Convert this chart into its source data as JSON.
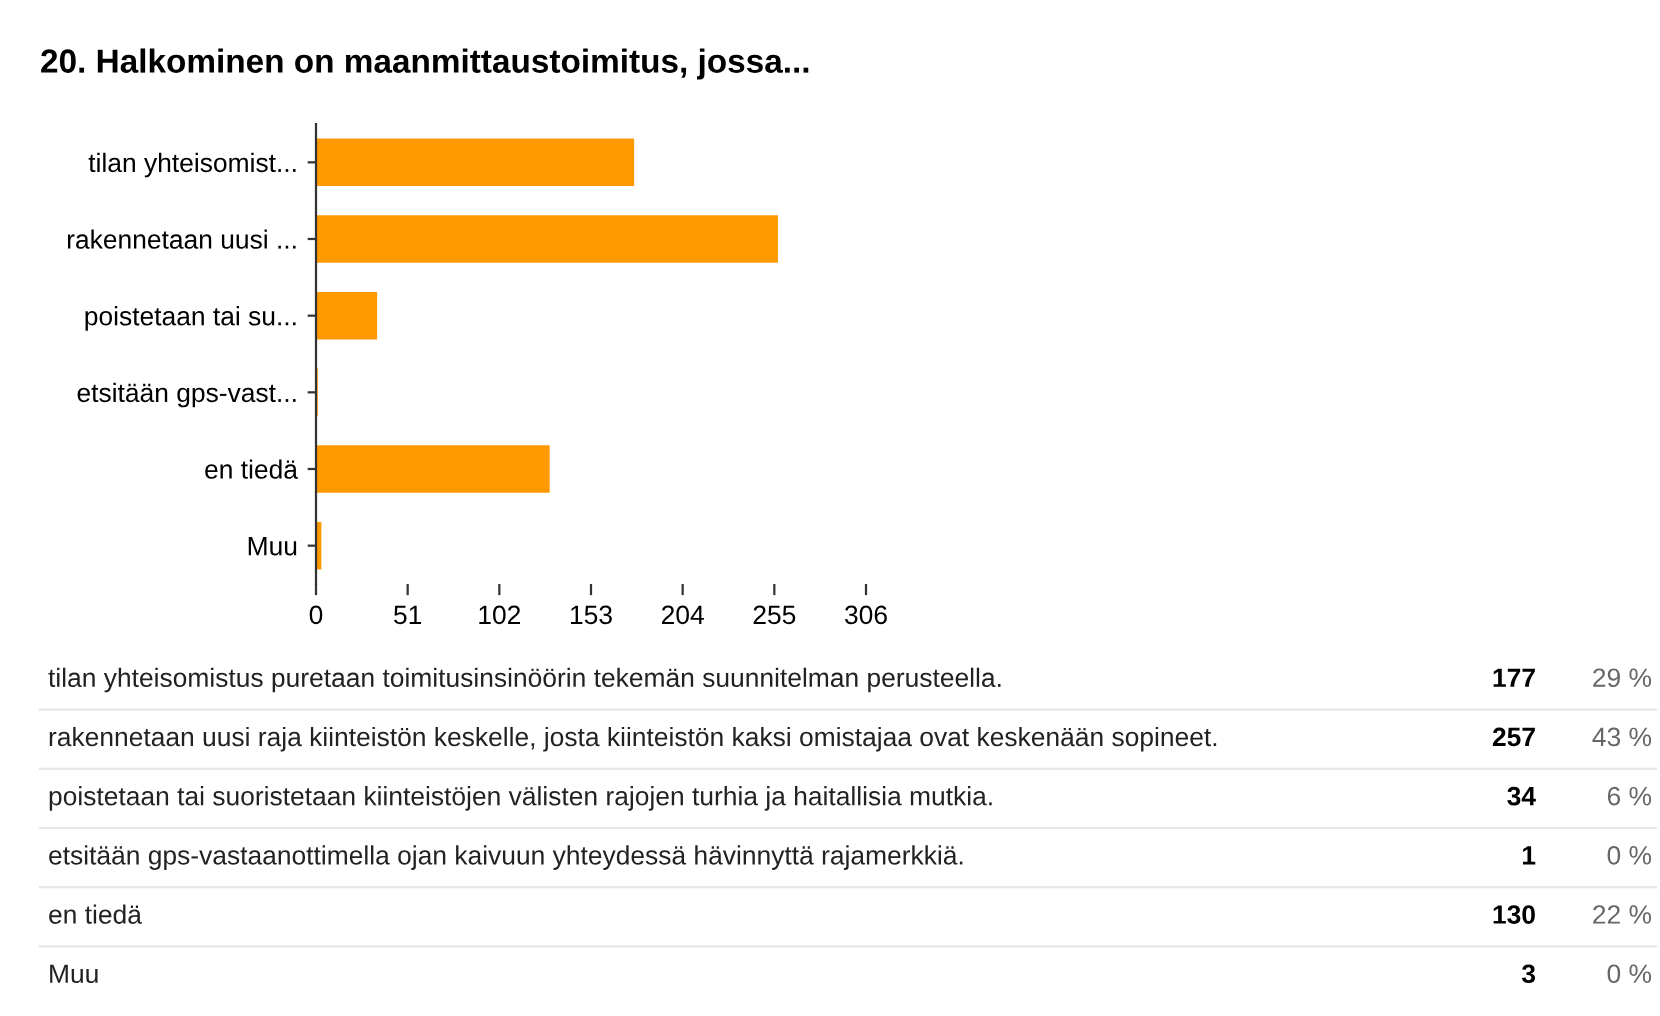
{
  "chart_data": {
    "type": "bar",
    "orientation": "horizontal",
    "title": "20. Halkominen on maanmittaustoimitus, jossa...",
    "categories": [
      "tilan yhteisomist...",
      "rakennetaan uusi ...",
      "poistetaan tai su...",
      "etsitään gps-vast...",
      "en tiedä",
      "Muu"
    ],
    "values": [
      177,
      257,
      34,
      1,
      130,
      3
    ],
    "color": "#ff9900",
    "xlim": [
      0,
      306
    ],
    "xticks": [
      0,
      51,
      102,
      153,
      204,
      255,
      306
    ],
    "grid": false,
    "annotations": [
      "tilan yhteisomistus puretaan toimitusinsinöörin tekemän suunnitelman perusteella.",
      "rakennetaan uusi raja kiinteistön keskelle, josta kiinteistön kaksi omistajaa ovat keskenään sopineet.",
      "poistetaan tai suoristetaan kiinteistöjen välisten rajojen turhia ja haitallisia mutkia.",
      "etsitään gps-vastaanottimella ojan kaivuun yhteydessä hävinnyttä rajamerkkiä.",
      "en tiedä",
      "Muu",
      "177",
      "257",
      "34",
      "1",
      "130",
      "3",
      "29 %",
      "43 %",
      "6 %",
      "0 %",
      "22 %",
      "0 %"
    ]
  }
}
